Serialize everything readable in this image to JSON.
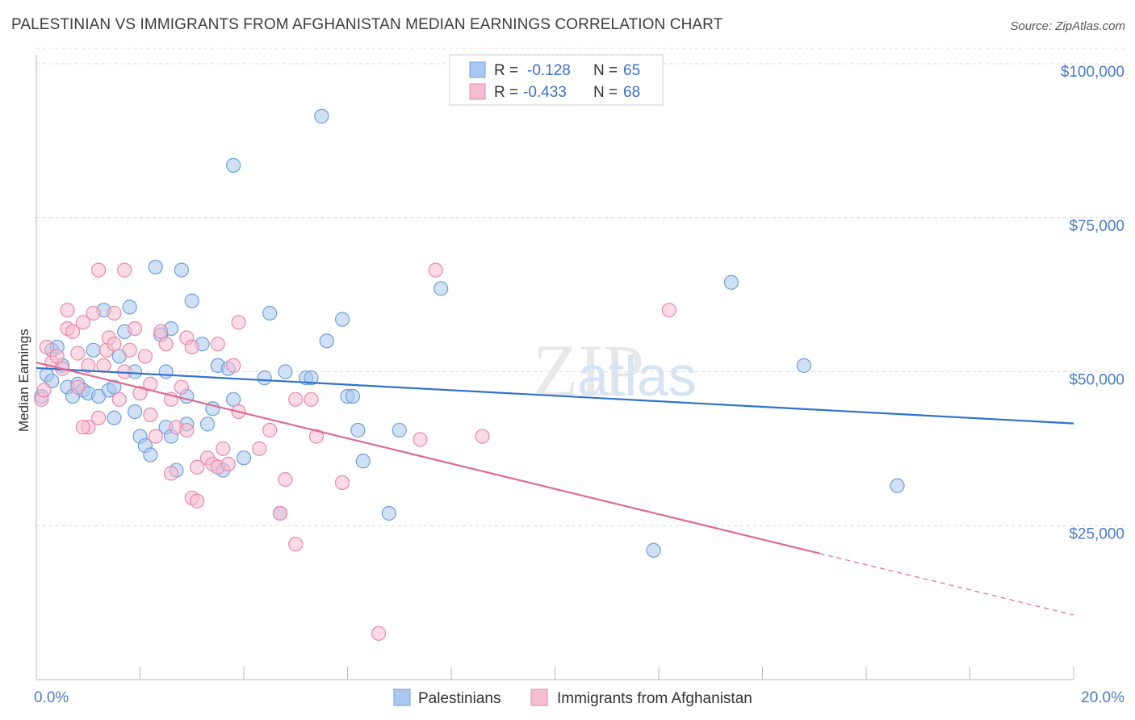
{
  "title": "PALESTINIAN VS IMMIGRANTS FROM AFGHANISTAN MEDIAN EARNINGS CORRELATION CHART",
  "source": "Source: ZipAtlas.com",
  "colors": {
    "blue_fill": "#aac8ef",
    "blue_stroke": "#6e9fdc",
    "blue_line": "#2f72cc",
    "pink_fill": "#f6bcd0",
    "pink_stroke": "#e889aa",
    "pink_line": "#e06a93",
    "grid": "#dcdcdc",
    "tick_text": "#4a7cc9"
  },
  "legend": {
    "blue": {
      "r_label": "R =",
      "r_value": "-0.128",
      "n_label": "N =",
      "n_value": "65"
    },
    "pink": {
      "r_label": "R =",
      "r_value": "-0.433",
      "n_label": "N =",
      "n_value": "68"
    }
  },
  "chart_data": {
    "type": "scatter",
    "title": "PALESTINIAN VS IMMIGRANTS FROM AFGHANISTAN MEDIAN EARNINGS CORRELATION CHART",
    "xlabel": "",
    "ylabel": "Median Earnings",
    "xlim": [
      0,
      20
    ],
    "ylim": [
      0,
      105000
    ],
    "x_tick_labels": [
      "0.0%",
      "20.0%"
    ],
    "y_ticks": [
      25000,
      50000,
      75000,
      100000
    ],
    "y_tick_labels": [
      "$25,000",
      "$50,000",
      "$75,000",
      "$100,000"
    ],
    "grid": true,
    "legend_placement": "top-center",
    "watermark": "ZIPatlas",
    "series": [
      {
        "name": "Palestinians",
        "color": "#aac8ef",
        "trend": {
          "x": [
            0,
            20
          ],
          "y": [
            50600,
            41600
          ]
        },
        "points": [
          [
            0.1,
            46000
          ],
          [
            0.2,
            49500
          ],
          [
            0.3,
            48500
          ],
          [
            0.3,
            53500
          ],
          [
            0.4,
            54000
          ],
          [
            0.5,
            51000
          ],
          [
            0.6,
            47500
          ],
          [
            0.7,
            46000
          ],
          [
            0.8,
            48000
          ],
          [
            0.9,
            47000
          ],
          [
            1.0,
            46500
          ],
          [
            1.1,
            53500
          ],
          [
            1.2,
            46000
          ],
          [
            1.3,
            60000
          ],
          [
            1.4,
            47000
          ],
          [
            1.5,
            47500
          ],
          [
            1.5,
            42500
          ],
          [
            1.6,
            52500
          ],
          [
            1.7,
            56500
          ],
          [
            1.8,
            60500
          ],
          [
            1.9,
            43500
          ],
          [
            1.9,
            50000
          ],
          [
            2.0,
            39500
          ],
          [
            2.1,
            38000
          ],
          [
            2.2,
            36500
          ],
          [
            2.3,
            67000
          ],
          [
            2.4,
            56000
          ],
          [
            2.5,
            50000
          ],
          [
            2.5,
            41000
          ],
          [
            2.6,
            57000
          ],
          [
            2.6,
            39500
          ],
          [
            2.7,
            34000
          ],
          [
            2.8,
            66500
          ],
          [
            2.9,
            46000
          ],
          [
            2.9,
            41500
          ],
          [
            3.0,
            61500
          ],
          [
            3.2,
            54500
          ],
          [
            3.3,
            41500
          ],
          [
            3.4,
            44000
          ],
          [
            3.5,
            51000
          ],
          [
            3.6,
            34000
          ],
          [
            3.7,
            50500
          ],
          [
            3.8,
            45500
          ],
          [
            3.8,
            83500
          ],
          [
            4.0,
            36000
          ],
          [
            4.4,
            49000
          ],
          [
            4.5,
            59500
          ],
          [
            4.7,
            27000
          ],
          [
            4.8,
            50000
          ],
          [
            5.2,
            49000
          ],
          [
            5.3,
            49000
          ],
          [
            5.5,
            91500
          ],
          [
            5.6,
            55000
          ],
          [
            5.9,
            58500
          ],
          [
            6.0,
            46000
          ],
          [
            6.1,
            46000
          ],
          [
            6.2,
            40500
          ],
          [
            6.3,
            35500
          ],
          [
            6.8,
            27000
          ],
          [
            7.0,
            40500
          ],
          [
            7.8,
            63500
          ],
          [
            11.9,
            21000
          ],
          [
            13.4,
            64500
          ],
          [
            14.8,
            51000
          ],
          [
            16.6,
            31500
          ]
        ]
      },
      {
        "name": "Immigrants from Afghanistan",
        "color": "#f6bcd0",
        "trend": {
          "x": [
            0,
            15.1
          ],
          "y": [
            51500,
            20500
          ]
        },
        "trend_dashed": {
          "x": [
            15.1,
            20
          ],
          "y": [
            20500,
            10500
          ]
        },
        "points": [
          [
            0.1,
            45500
          ],
          [
            0.15,
            47000
          ],
          [
            0.2,
            54000
          ],
          [
            0.3,
            51500
          ],
          [
            0.4,
            52500
          ],
          [
            0.5,
            50500
          ],
          [
            0.6,
            57000
          ],
          [
            0.6,
            60000
          ],
          [
            0.7,
            56500
          ],
          [
            0.8,
            53000
          ],
          [
            0.8,
            47500
          ],
          [
            0.9,
            58000
          ],
          [
            1.0,
            51000
          ],
          [
            1.0,
            41000
          ],
          [
            1.1,
            59500
          ],
          [
            1.2,
            42500
          ],
          [
            1.3,
            51000
          ],
          [
            1.35,
            53500
          ],
          [
            1.4,
            55500
          ],
          [
            1.5,
            54500
          ],
          [
            1.5,
            59500
          ],
          [
            1.6,
            45500
          ],
          [
            1.7,
            50000
          ],
          [
            1.7,
            66500
          ],
          [
            1.8,
            53500
          ],
          [
            1.9,
            57000
          ],
          [
            2.0,
            46500
          ],
          [
            2.1,
            52500
          ],
          [
            2.2,
            43000
          ],
          [
            2.3,
            39500
          ],
          [
            2.4,
            56500
          ],
          [
            2.5,
            54500
          ],
          [
            2.6,
            45500
          ],
          [
            2.6,
            33500
          ],
          [
            2.7,
            41000
          ],
          [
            2.8,
            47500
          ],
          [
            2.9,
            40500
          ],
          [
            2.9,
            55500
          ],
          [
            3.0,
            54000
          ],
          [
            3.0,
            29500
          ],
          [
            3.1,
            29000
          ],
          [
            3.1,
            34500
          ],
          [
            3.3,
            36000
          ],
          [
            3.4,
            35000
          ],
          [
            3.5,
            54500
          ],
          [
            3.5,
            34500
          ],
          [
            3.6,
            37500
          ],
          [
            3.7,
            35000
          ],
          [
            3.8,
            51000
          ],
          [
            3.9,
            43500
          ],
          [
            3.9,
            58000
          ],
          [
            4.3,
            37500
          ],
          [
            4.5,
            40500
          ],
          [
            4.7,
            27000
          ],
          [
            4.8,
            32500
          ],
          [
            5.0,
            22000
          ],
          [
            5.0,
            45500
          ],
          [
            5.3,
            45500
          ],
          [
            5.4,
            39500
          ],
          [
            5.9,
            32000
          ],
          [
            6.6,
            7500
          ],
          [
            7.4,
            39000
          ],
          [
            7.7,
            66500
          ],
          [
            8.6,
            39500
          ],
          [
            12.2,
            60000
          ],
          [
            1.2,
            66500
          ],
          [
            0.9,
            41000
          ],
          [
            2.2,
            48000
          ]
        ]
      }
    ]
  },
  "bottom_legend": [
    "Palestinians",
    "Immigrants from Afghanistan"
  ]
}
